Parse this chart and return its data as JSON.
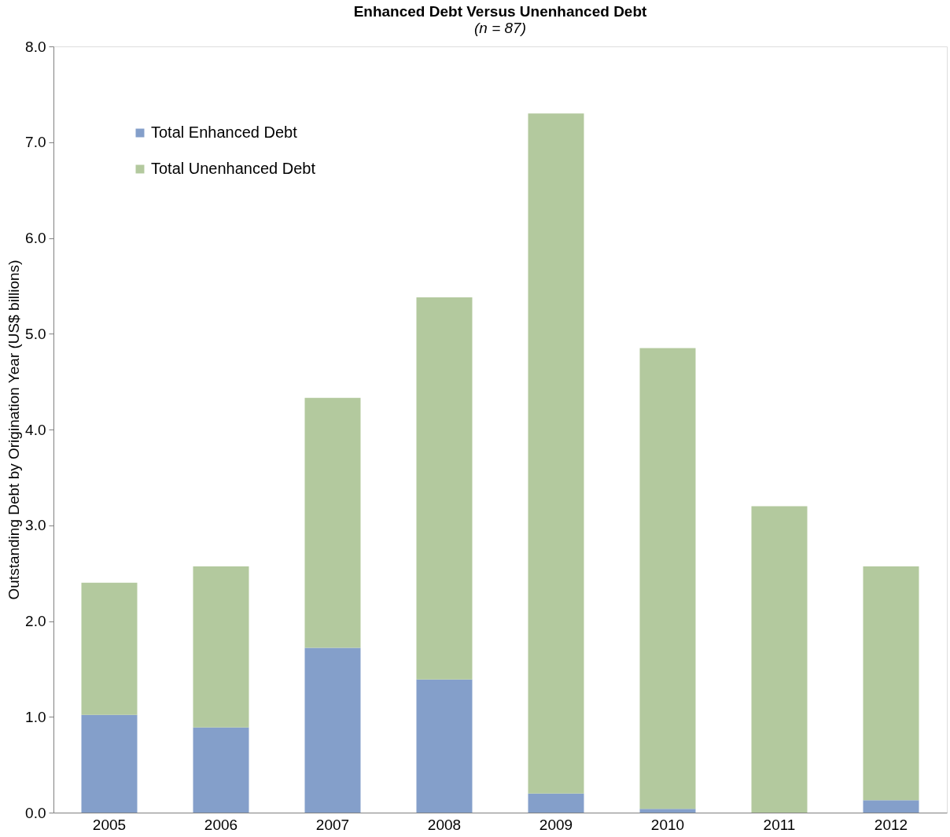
{
  "chart_data": {
    "type": "bar",
    "title": "Enhanced Debt Versus Unenhanced Debt",
    "subtitle": "(n = 87)",
    "ylabel": "Outstanding Debt by Origination Year (US$ billions)",
    "categories": [
      "2005",
      "2006",
      "2007",
      "2008",
      "2009",
      "2010",
      "2011",
      "2012"
    ],
    "stacked": true,
    "series": [
      {
        "name": "Total Enhanced Debt",
        "color": "#849fca",
        "values": [
          1.02,
          0.89,
          1.72,
          1.39,
          0.2,
          0.04,
          0.0,
          0.13
        ]
      },
      {
        "name": "Total Unenhanced Debt",
        "color": "#b3c99e",
        "values": [
          1.38,
          1.68,
          2.61,
          3.99,
          7.1,
          4.81,
          3.2,
          2.44
        ]
      }
    ],
    "ylim": [
      0,
      8
    ],
    "yticks": [
      {
        "value": 0,
        "label": "0.0"
      },
      {
        "value": 1,
        "label": "1.0"
      },
      {
        "value": 2,
        "label": "2.0"
      },
      {
        "value": 3,
        "label": "3.0"
      },
      {
        "value": 4,
        "label": "4.0"
      },
      {
        "value": 5,
        "label": "5.0"
      },
      {
        "value": 6,
        "label": "6.0"
      },
      {
        "value": 7,
        "label": "7.0"
      },
      {
        "value": 8,
        "label": "8.0"
      }
    ],
    "grid": false,
    "legend": "top left"
  }
}
